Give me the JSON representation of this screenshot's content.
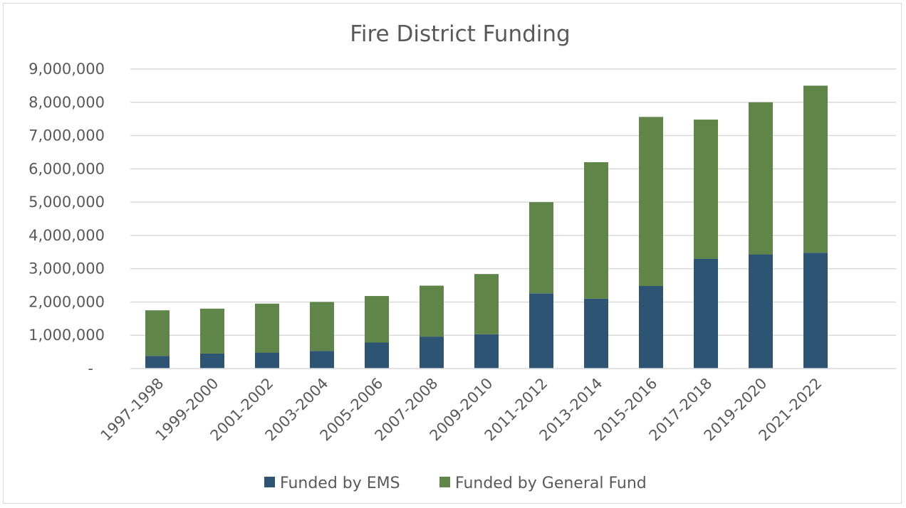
{
  "chart_data": {
    "type": "bar",
    "stacked": true,
    "title": "Fire District Funding",
    "xlabel": "",
    "ylabel": "",
    "categories": [
      "1997-1998",
      "1999-2000",
      "2001-2002",
      "2003-2004",
      "2005-2006",
      "2007-2008",
      "2009-2010",
      "2011-2012",
      "2013-2014",
      "2015-2016",
      "2017-2018",
      "2019-2020",
      "2021-2022"
    ],
    "series": [
      {
        "name": "Funded by EMS",
        "color": "#2e5473",
        "values": [
          380000,
          450000,
          480000,
          530000,
          780000,
          960000,
          1030000,
          2260000,
          2100000,
          2480000,
          3300000,
          3430000,
          3480000
        ]
      },
      {
        "name": "Funded by General Fund",
        "color": "#5f8548",
        "values": [
          1370000,
          1350000,
          1470000,
          1470000,
          1400000,
          1530000,
          1810000,
          2740000,
          4100000,
          5080000,
          4180000,
          4570000,
          5020000
        ]
      }
    ],
    "ylim": [
      0,
      9000000
    ],
    "yticks": [
      0,
      1000000,
      2000000,
      3000000,
      4000000,
      5000000,
      6000000,
      7000000,
      8000000,
      9000000
    ],
    "ytick_labels": [
      "-",
      "1,000,000",
      "2,000,000",
      "3,000,000",
      "4,000,000",
      "5,000,000",
      "6,000,000",
      "7,000,000",
      "8,000,000",
      "9,000,000"
    ],
    "grid": true,
    "legend_position": "bottom",
    "gridline_color": "#d9d9d9"
  }
}
